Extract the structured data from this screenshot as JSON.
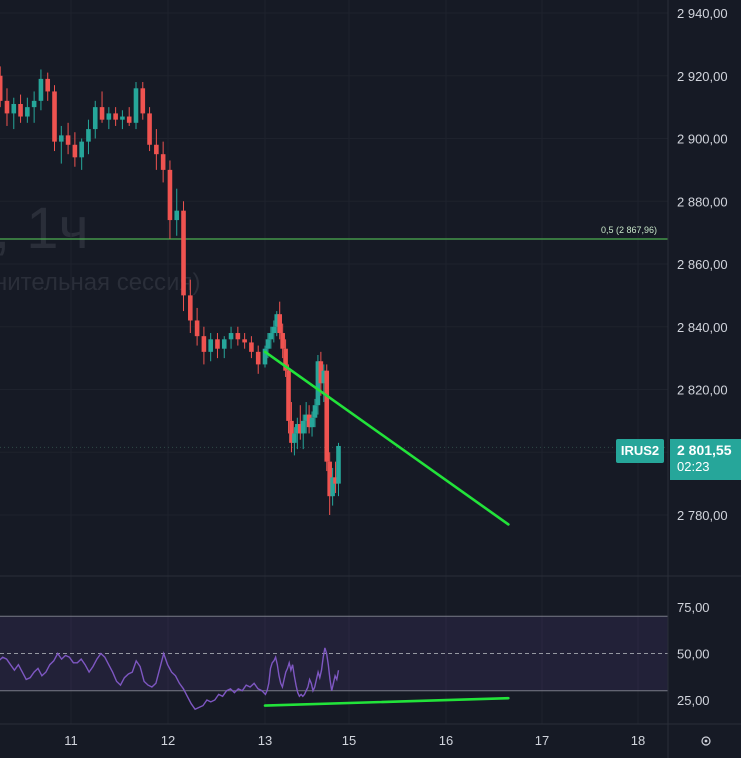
{
  "watermark": {
    "line1": ", 1ч",
    "line2": "нительная сессия)"
  },
  "price_axis_labels": [
    "2 940,00",
    "2 920,00",
    "2 900,00",
    "2 880,00",
    "2 860,00",
    "2 840,00",
    "2 820,00",
    "2 800,00",
    "2 780,00"
  ],
  "rsi_axis_labels": [
    "75,00",
    "50,00",
    "25,00"
  ],
  "time_axis_labels": [
    "11",
    "12",
    "13",
    "15",
    "16",
    "17",
    "18"
  ],
  "symbol_tag": "IRUS2",
  "last_price": "2 801,55",
  "countdown": "02:23",
  "fib_label": "0,5 (2 867,96)",
  "colors": {
    "background": "#161a25",
    "up": "#26a69a",
    "down": "#ef5350",
    "fib_line": "#4caf50",
    "trendline": "#22e33a",
    "rsi_line": "#7e57c2",
    "rsi_band": "#7e57c2",
    "price_tag": "#26a69a"
  },
  "chart_data": [
    {
      "type": "candlestick",
      "title": "",
      "xlabel": "",
      "ylabel": "",
      "x_ticks": [
        "11",
        "12",
        "13",
        "15",
        "16",
        "17",
        "18"
      ],
      "ylim": [
        2770,
        2945
      ],
      "y_ticks": [
        2940,
        2920,
        2900,
        2880,
        2860,
        2840,
        2820,
        2800,
        2780
      ],
      "last_price": 2801.55,
      "horizontal_levels": [
        {
          "label": "0,5 (2 867,96)",
          "value": 2867.96
        }
      ],
      "trendlines": [
        {
          "from": [
            13.0,
            2832
          ],
          "to": [
            16.65,
            2777
          ]
        }
      ],
      "ohlc": [
        [
          9.85,
          2935,
          2938,
          2928,
          2931
        ],
        [
          9.92,
          2931,
          2934,
          2924,
          2926
        ],
        [
          9.99,
          2926,
          2930,
          2918,
          2921
        ],
        [
          10.06,
          2921,
          2927,
          2916,
          2918
        ],
        [
          10.13,
          2918,
          2926,
          2914,
          2924
        ],
        [
          10.2,
          2924,
          2927,
          2918,
          2920
        ],
        [
          10.27,
          2920,
          2923,
          2910,
          2912
        ],
        [
          10.34,
          2912,
          2916,
          2904,
          2908
        ],
        [
          10.41,
          2908,
          2913,
          2903,
          2911
        ],
        [
          10.48,
          2911,
          2914,
          2905,
          2907
        ],
        [
          10.55,
          2907,
          2913,
          2905,
          2910
        ],
        [
          10.62,
          2910,
          2915,
          2905,
          2912
        ],
        [
          10.69,
          2912,
          2922,
          2909,
          2919
        ],
        [
          10.76,
          2919,
          2921,
          2912,
          2915
        ],
        [
          10.83,
          2915,
          2917,
          2896,
          2899
        ],
        [
          10.9,
          2899,
          2904,
          2892,
          2901
        ],
        [
          10.97,
          2901,
          2905,
          2895,
          2898
        ],
        [
          11.04,
          2898,
          2902,
          2891,
          2894
        ],
        [
          11.11,
          2894,
          2900,
          2890,
          2899
        ],
        [
          11.18,
          2899,
          2906,
          2895,
          2903
        ],
        [
          11.25,
          2903,
          2912,
          2900,
          2910
        ],
        [
          11.32,
          2910,
          2915,
          2905,
          2906
        ],
        [
          11.39,
          2906,
          2910,
          2903,
          2908
        ],
        [
          11.46,
          2908,
          2910,
          2904,
          2906
        ],
        [
          11.53,
          2906,
          2909,
          2903,
          2907
        ],
        [
          11.6,
          2907,
          2910,
          2904,
          2905
        ],
        [
          11.67,
          2905,
          2918,
          2903,
          2916
        ],
        [
          11.74,
          2916,
          2918,
          2906,
          2908
        ],
        [
          11.81,
          2908,
          2910,
          2896,
          2898
        ],
        [
          11.88,
          2898,
          2903,
          2890,
          2895
        ],
        [
          11.95,
          2895,
          2899,
          2886,
          2890
        ],
        [
          12.02,
          2890,
          2893,
          2868,
          2874
        ],
        [
          12.09,
          2874,
          2884,
          2869,
          2877
        ],
        [
          12.16,
          2877,
          2880,
          2845,
          2850
        ],
        [
          12.23,
          2850,
          2855,
          2838,
          2842
        ],
        [
          12.3,
          2842,
          2846,
          2834,
          2837
        ],
        [
          12.37,
          2837,
          2840,
          2828,
          2832
        ],
        [
          12.44,
          2832,
          2838,
          2829,
          2836
        ],
        [
          12.51,
          2836,
          2838,
          2830,
          2833
        ],
        [
          12.58,
          2833,
          2837,
          2830,
          2836
        ],
        [
          12.65,
          2836,
          2840,
          2833,
          2838
        ],
        [
          12.72,
          2838,
          2840,
          2834,
          2836
        ],
        [
          12.79,
          2836,
          2838,
          2833,
          2835
        ],
        [
          12.86,
          2835,
          2837,
          2830,
          2832
        ],
        [
          12.93,
          2832,
          2834,
          2825,
          2828
        ],
        [
          13.0,
          2828,
          2834,
          2827,
          2833
        ],
        [
          13.07,
          2833,
          2838,
          2830,
          2836
        ],
        [
          13.14,
          2836,
          2840,
          2833,
          2838
        ],
        [
          13.21,
          2838,
          2842,
          2835,
          2840
        ],
        [
          13.28,
          2840,
          2845,
          2837,
          2844
        ],
        [
          13.35,
          2844,
          2848,
          2836,
          2838
        ],
        [
          13.42,
          2838,
          2841,
          2830,
          2833
        ],
        [
          13.49,
          2833,
          2836,
          2824,
          2826
        ],
        [
          13.56,
          2826,
          2828,
          2806,
          2810
        ],
        [
          13.63,
          2810,
          2816,
          2800,
          2803
        ],
        [
          13.7,
          2803,
          2808,
          2799,
          2806
        ],
        [
          13.77,
          2806,
          2811,
          2801,
          2809
        ],
        [
          13.84,
          2809,
          2815,
          2804,
          2806
        ],
        [
          13.91,
          2806,
          2812,
          2801,
          2810
        ],
        [
          13.98,
          2810,
          2816,
          2806,
          2812
        ],
        [
          14.05,
          2812,
          2815,
          2806,
          2808
        ],
        [
          14.12,
          2808,
          2813,
          2805,
          2811
        ],
        [
          14.19,
          2811,
          2817,
          2808,
          2815
        ],
        [
          14.26,
          2815,
          2831,
          2812,
          2829
        ],
        [
          14.33,
          2829,
          2832,
          2818,
          2822
        ],
        [
          14.4,
          2822,
          2828,
          2816,
          2826
        ],
        [
          14.47,
          2826,
          2828,
          2794,
          2797
        ],
        [
          14.54,
          2797,
          2800,
          2780,
          2786
        ],
        [
          14.61,
          2786,
          2795,
          2783,
          2792
        ],
        [
          14.68,
          2792,
          2797,
          2787,
          2790
        ],
        [
          14.75,
          2790,
          2803,
          2786,
          2802
        ]
      ]
    },
    {
      "type": "line",
      "title": "",
      "xlabel": "",
      "ylabel": "",
      "ylim": [
        16,
        80
      ],
      "y_ticks": [
        75,
        50,
        25
      ],
      "band": [
        30,
        70
      ],
      "midline": 50,
      "trendlines": [
        {
          "from": [
            13.0,
            22
          ],
          "to": [
            16.65,
            26
          ]
        }
      ],
      "series": [
        {
          "name": "",
          "values": [
            51,
            50,
            46,
            48,
            47,
            44,
            46,
            42,
            40,
            43,
            46,
            48,
            47,
            44,
            41,
            44,
            40,
            36,
            37,
            40,
            42,
            38,
            40,
            44,
            46,
            50,
            47,
            49,
            48,
            45,
            45,
            47,
            44,
            40,
            43,
            47,
            50,
            48,
            44,
            40,
            35,
            33,
            37,
            39,
            40,
            46,
            43,
            35,
            33,
            32,
            34,
            42,
            50,
            44,
            40,
            38,
            34,
            31,
            27,
            23,
            20,
            21,
            22,
            25,
            24,
            25,
            28,
            27,
            30,
            31,
            29,
            31,
            30,
            33,
            32,
            34,
            31,
            30,
            28,
            30,
            34,
            42,
            45,
            46,
            48,
            44,
            38,
            34,
            32,
            36,
            40,
            42,
            45,
            41,
            44,
            38,
            33,
            29,
            27,
            28,
            27,
            28,
            30,
            32,
            36,
            34,
            30,
            32,
            36,
            40,
            37,
            41,
            48,
            53,
            50,
            44,
            36,
            30,
            34,
            38,
            36,
            41
          ]
        }
      ]
    }
  ]
}
